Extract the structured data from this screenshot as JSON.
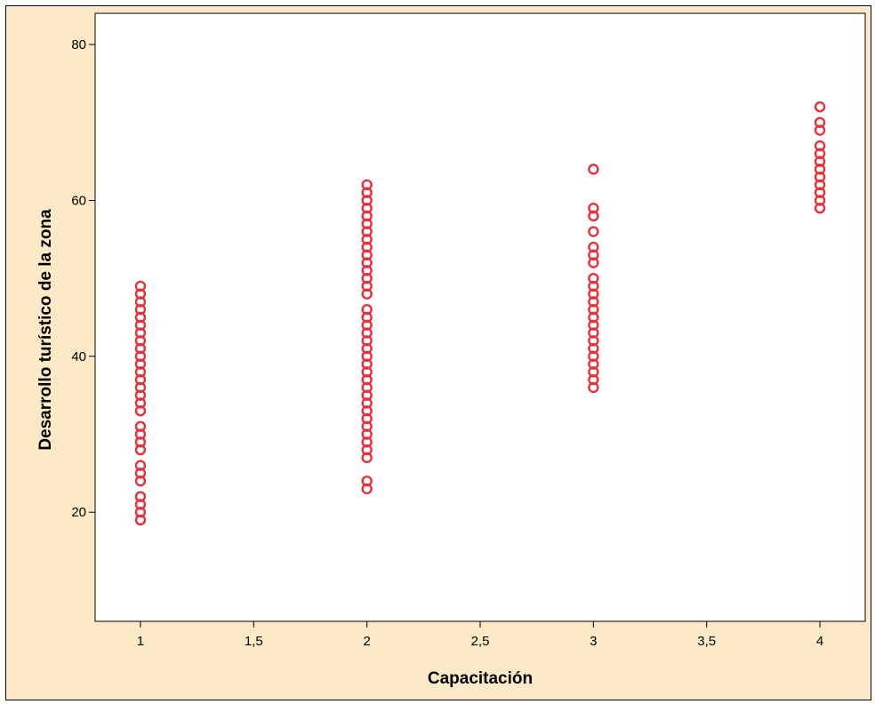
{
  "colors": {
    "background": "#fbeac5",
    "plot_background": "#ffffff",
    "marker": "#e8303a",
    "axis": "#000000"
  },
  "chart_data": {
    "type": "scatter",
    "title": "",
    "xlabel": "Capacitación",
    "ylabel": "Desarrollo turístico de la zona",
    "xlim": [
      0.8,
      4.2
    ],
    "ylim": [
      6,
      84
    ],
    "x_ticks": [
      {
        "value": 1,
        "label": "1"
      },
      {
        "value": 1.5,
        "label": "1,5"
      },
      {
        "value": 2,
        "label": "2"
      },
      {
        "value": 2.5,
        "label": "2,5"
      },
      {
        "value": 3,
        "label": "3"
      },
      {
        "value": 3.5,
        "label": "3,5"
      },
      {
        "value": 4,
        "label": "4"
      }
    ],
    "y_ticks": [
      {
        "value": 20,
        "label": "20"
      },
      {
        "value": 40,
        "label": "40"
      },
      {
        "value": 60,
        "label": "60"
      },
      {
        "value": 80,
        "label": "80"
      }
    ],
    "grid": false,
    "legend": "none",
    "marker": "open-circle",
    "series": [
      {
        "x": 1,
        "y": [
          19,
          20,
          21,
          22,
          24,
          25,
          26,
          28,
          29,
          30,
          31,
          33,
          34,
          35,
          36,
          37,
          38,
          39,
          40,
          41,
          42,
          43,
          44,
          45,
          46,
          47,
          48,
          49
        ]
      },
      {
        "x": 2,
        "y": [
          23,
          24,
          27,
          28,
          29,
          30,
          31,
          32,
          33,
          34,
          35,
          36,
          37,
          38,
          39,
          40,
          41,
          42,
          43,
          44,
          45,
          46,
          48,
          49,
          50,
          51,
          52,
          53,
          54,
          55,
          56,
          57,
          58,
          59,
          60,
          61,
          62
        ]
      },
      {
        "x": 3,
        "y": [
          36,
          37,
          38,
          39,
          40,
          41,
          42,
          43,
          44,
          45,
          46,
          47,
          48,
          49,
          50,
          52,
          53,
          54,
          56,
          58,
          59,
          64
        ]
      },
      {
        "x": 4,
        "y": [
          59,
          60,
          61,
          62,
          63,
          64,
          65,
          66,
          67,
          69,
          70,
          72
        ]
      }
    ]
  }
}
